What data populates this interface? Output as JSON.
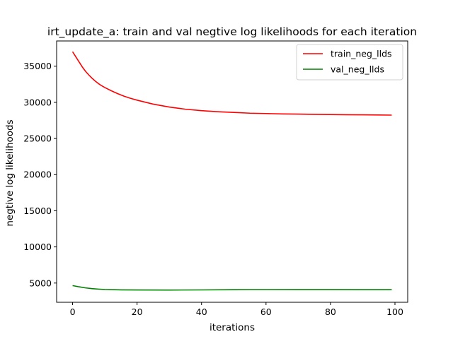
{
  "chart_data": {
    "type": "line",
    "title": "irt_update_a: train and val negtive log likelihoods for each iteration",
    "xlabel": "iterations",
    "ylabel": "negtive log likelihoods",
    "xlim": [
      -4.95,
      103.95
    ],
    "ylim": [
      2340,
      38490
    ],
    "xticks": [
      0,
      20,
      40,
      60,
      80,
      100
    ],
    "xtick_labels": [
      "0",
      "20",
      "40",
      "60",
      "80",
      "100"
    ],
    "yticks": [
      5000,
      10000,
      15000,
      20000,
      25000,
      30000,
      35000
    ],
    "ytick_labels": [
      "5000",
      "10000",
      "15000",
      "20000",
      "25000",
      "30000",
      "35000"
    ],
    "grid": false,
    "legend_position": "upper-right",
    "series": [
      {
        "name": "train_neg_llds",
        "color": "#ff0000",
        "x": [
          0,
          1,
          2,
          3,
          4,
          5,
          6,
          7,
          8,
          9,
          10,
          12,
          14,
          16,
          18,
          20,
          25,
          30,
          35,
          40,
          45,
          50,
          55,
          60,
          65,
          70,
          75,
          80,
          85,
          90,
          95,
          99
        ],
        "y": [
          37000,
          36300,
          35600,
          34900,
          34300,
          33800,
          33350,
          32950,
          32600,
          32300,
          32050,
          31600,
          31200,
          30850,
          30550,
          30300,
          29750,
          29350,
          29050,
          28850,
          28700,
          28600,
          28500,
          28450,
          28400,
          28370,
          28340,
          28310,
          28290,
          28270,
          28250,
          28230
        ]
      },
      {
        "name": "val_neg_llds",
        "color": "#008000",
        "x": [
          0,
          2,
          4,
          6,
          8,
          10,
          15,
          20,
          30,
          40,
          50,
          55,
          60,
          70,
          80,
          90,
          99
        ],
        "y": [
          4650,
          4480,
          4330,
          4230,
          4160,
          4110,
          4060,
          4040,
          4030,
          4050,
          4080,
          4100,
          4100,
          4090,
          4090,
          4080,
          4080
        ]
      }
    ]
  }
}
